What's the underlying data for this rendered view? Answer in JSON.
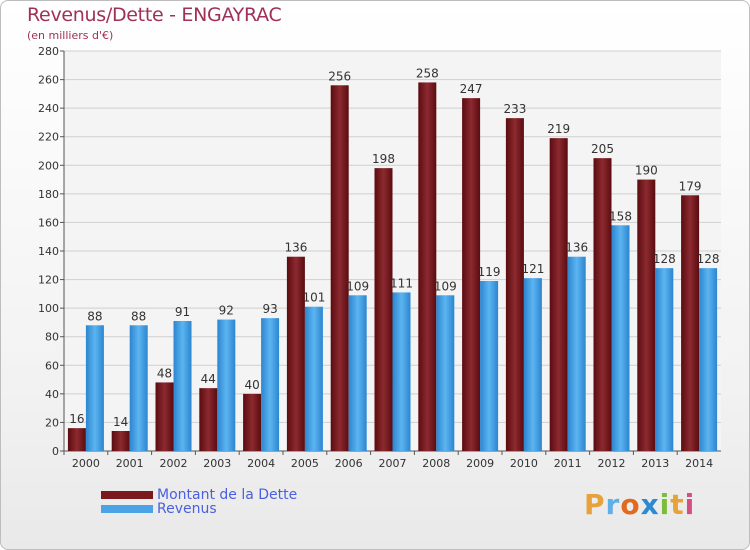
{
  "header": {
    "title": "Revenus/Dette - ENGAYRAC",
    "subtitle": "(en milliers d'€)"
  },
  "legend": {
    "items": [
      {
        "label": "Montant de la Dette",
        "color": "#7a1a1f"
      },
      {
        "label": "Revenus",
        "color": "#4aa3e6"
      }
    ]
  },
  "logo": {
    "text": "Proxiti",
    "colors": [
      "#e8a23a",
      "#5fb0e8",
      "#e06a1f",
      "#2c8ad0",
      "#7bbd3a",
      "#e8a23a",
      "#d44f7f"
    ]
  },
  "chart_data": {
    "type": "bar",
    "categories": [
      "2000",
      "2001",
      "2002",
      "2003",
      "2004",
      "2005",
      "2006",
      "2007",
      "2008",
      "2009",
      "2010",
      "2011",
      "2012",
      "2013",
      "2014"
    ],
    "series": [
      {
        "name": "Montant de la Dette",
        "color": "#7a1a1f",
        "values": [
          16,
          14,
          48,
          44,
          40,
          136,
          256,
          198,
          258,
          247,
          233,
          219,
          205,
          190,
          179
        ]
      },
      {
        "name": "Revenus",
        "color": "#4aa3e6",
        "values": [
          88,
          88,
          91,
          92,
          93,
          101,
          109,
          111,
          109,
          119,
          121,
          136,
          158,
          128,
          128
        ]
      }
    ],
    "ylim": [
      0,
      280
    ],
    "yticks": [
      0,
      20,
      40,
      60,
      80,
      100,
      120,
      140,
      160,
      180,
      200,
      220,
      240,
      260,
      280
    ],
    "grid": true
  }
}
